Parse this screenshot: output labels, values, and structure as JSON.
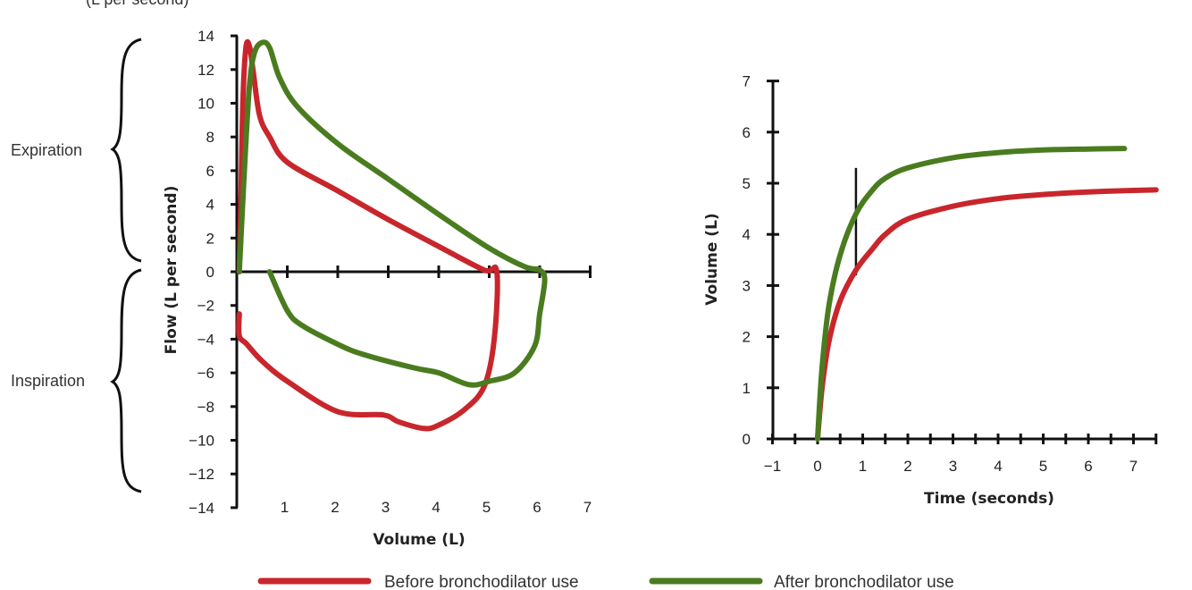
{
  "top_label_fragment": "(L per second)",
  "colors": {
    "before": "#c8262c",
    "after": "#4a7c1f",
    "axis": "#111111",
    "text": "#333333"
  },
  "legend": {
    "before_label": "Before bronchodilator use",
    "after_label": "After bronchodilator use"
  },
  "chart_data": [
    {
      "type": "line",
      "name": "flow-volume",
      "xlabel": "Volume (L)",
      "ylabel": "Flow (L per second)",
      "xlim": [
        0,
        7
      ],
      "ylim": [
        -14,
        14
      ],
      "x_ticks": [
        "1",
        "2",
        "3",
        "4",
        "5",
        "6",
        "7"
      ],
      "y_ticks": [
        "14",
        "12",
        "10",
        "8",
        "6",
        "4",
        "2",
        "0",
        "−2",
        "−4",
        "−6",
        "−8",
        "−10",
        "−12",
        "−14"
      ],
      "annotations": [
        "Expiration",
        "Inspiration"
      ],
      "series": [
        {
          "name": "Before bronchodilator use",
          "color": "#c8262c",
          "points": [
            [
              0.05,
              0
            ],
            [
              0.08,
              4
            ],
            [
              0.12,
              10
            ],
            [
              0.18,
              13.3
            ],
            [
              0.25,
              13.4
            ],
            [
              0.32,
              12
            ],
            [
              0.45,
              9.3
            ],
            [
              0.65,
              8
            ],
            [
              1.0,
              6.5
            ],
            [
              2.0,
              4.8
            ],
            [
              3.0,
              3.1
            ],
            [
              4.0,
              1.5
            ],
            [
              4.9,
              0.1
            ],
            [
              5.15,
              0
            ],
            [
              5.1,
              -4
            ],
            [
              4.9,
              -6.8
            ],
            [
              4.5,
              -8.2
            ],
            [
              4.0,
              -9.1
            ],
            [
              3.7,
              -9.3
            ],
            [
              3.2,
              -8.9
            ],
            [
              2.9,
              -8.5
            ],
            [
              2.0,
              -8.3
            ],
            [
              1.0,
              -6.5
            ],
            [
              0.5,
              -5.3
            ],
            [
              0.2,
              -4.3
            ],
            [
              0.05,
              -3.8
            ],
            [
              0.05,
              -2.5
            ]
          ]
        },
        {
          "name": "After bronchodilator use",
          "color": "#4a7c1f",
          "points": [
            [
              0.05,
              0
            ],
            [
              0.15,
              6
            ],
            [
              0.25,
              11
            ],
            [
              0.35,
              13
            ],
            [
              0.5,
              13.6
            ],
            [
              0.65,
              13.3
            ],
            [
              0.85,
              11.5
            ],
            [
              1.2,
              9.8
            ],
            [
              2.0,
              7.6
            ],
            [
              3.0,
              5.5
            ],
            [
              4.0,
              3.4
            ],
            [
              5.0,
              1.4
            ],
            [
              5.7,
              0.3
            ],
            [
              6.0,
              0.1
            ],
            [
              6.1,
              -0.5
            ],
            [
              6.0,
              -2.5
            ],
            [
              5.9,
              -4.4
            ],
            [
              5.5,
              -6.0
            ],
            [
              5.0,
              -6.5
            ],
            [
              4.6,
              -6.7
            ],
            [
              4.0,
              -6.0
            ],
            [
              3.5,
              -5.7
            ],
            [
              2.5,
              -4.9
            ],
            [
              2.0,
              -4.3
            ],
            [
              1.3,
              -3.2
            ],
            [
              1.0,
              -2.3
            ],
            [
              0.65,
              0
            ]
          ]
        }
      ]
    },
    {
      "type": "line",
      "name": "volume-time",
      "xlabel": "Time (seconds)",
      "ylabel": "Volume (L)",
      "xlim": [
        -1,
        7.5
      ],
      "ylim": [
        0,
        7
      ],
      "x_ticks": [
        "−1",
        "0",
        "1",
        "2",
        "3",
        "4",
        "5",
        "6",
        "7"
      ],
      "y_ticks": [
        "0",
        "1",
        "2",
        "3",
        "4",
        "5",
        "6",
        "7"
      ],
      "marker_line": {
        "x": 0.85,
        "y_from": 3.2,
        "y_to": 5.3
      },
      "series": [
        {
          "name": "Before bronchodilator use",
          "color": "#c8262c",
          "points": [
            [
              0,
              0
            ],
            [
              0.1,
              1.0
            ],
            [
              0.25,
              1.9
            ],
            [
              0.5,
              2.7
            ],
            [
              0.85,
              3.3
            ],
            [
              1.2,
              3.7
            ],
            [
              1.5,
              4.0
            ],
            [
              2.0,
              4.3
            ],
            [
              3.0,
              4.55
            ],
            [
              4.0,
              4.7
            ],
            [
              5.0,
              4.78
            ],
            [
              6.0,
              4.83
            ],
            [
              7.0,
              4.86
            ],
            [
              7.5,
              4.87
            ]
          ]
        },
        {
          "name": "After bronchodilator use",
          "color": "#4a7c1f",
          "points": [
            [
              0,
              0
            ],
            [
              0.1,
              1.4
            ],
            [
              0.25,
              2.6
            ],
            [
              0.5,
              3.6
            ],
            [
              0.85,
              4.4
            ],
            [
              1.2,
              4.85
            ],
            [
              1.5,
              5.1
            ],
            [
              2.0,
              5.3
            ],
            [
              3.0,
              5.5
            ],
            [
              4.0,
              5.6
            ],
            [
              5.0,
              5.65
            ],
            [
              6.0,
              5.67
            ],
            [
              6.8,
              5.68
            ]
          ]
        }
      ]
    }
  ]
}
